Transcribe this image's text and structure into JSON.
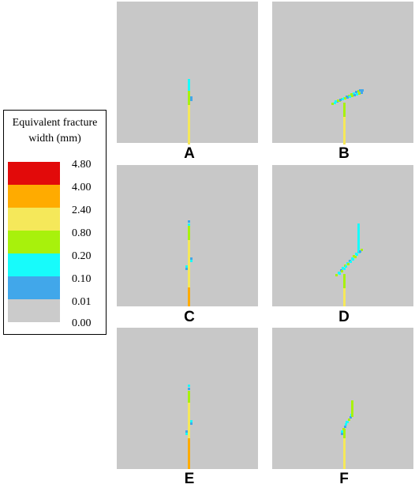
{
  "legend": {
    "title_line1": "Equivalent fracture",
    "title_line2": "width (mm)",
    "ticks": [
      "4.80",
      "4.00",
      "2.40",
      "0.80",
      "0.20",
      "0.10",
      "0.01",
      "0.00"
    ],
    "colors": [
      "#e20a0a",
      "#ffab00",
      "#f5e85a",
      "#a8f10c",
      "#17fbfb",
      "#41a7ea",
      "#cbcbcb"
    ]
  },
  "panels": [
    {
      "label": "A"
    },
    {
      "label": "B"
    },
    {
      "label": "C"
    },
    {
      "label": "D"
    },
    {
      "label": "E"
    },
    {
      "label": "F"
    }
  ]
}
